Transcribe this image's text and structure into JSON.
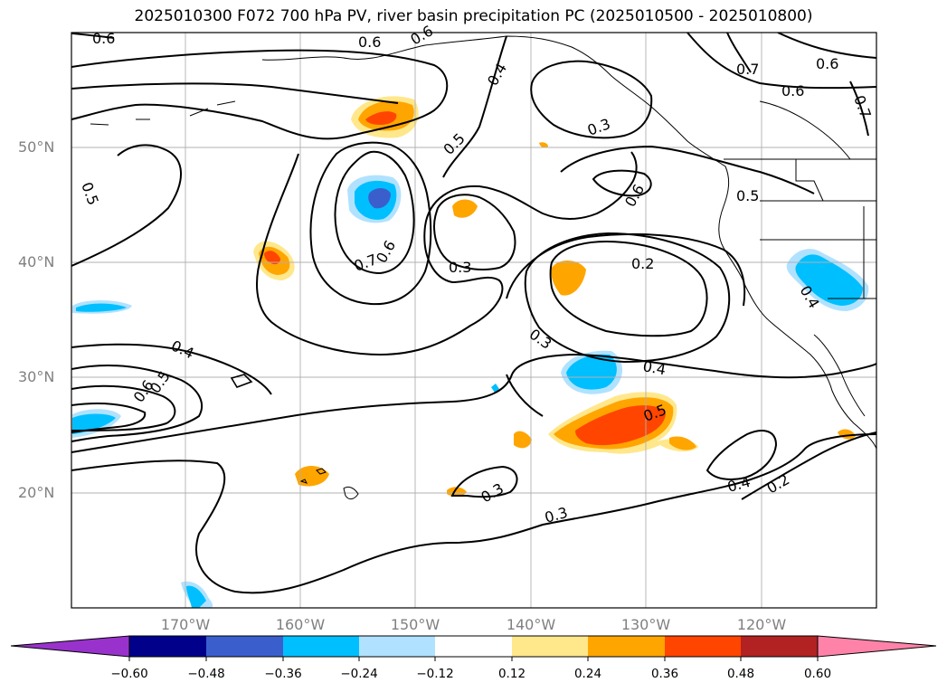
{
  "title": "2025010300 F072 700 hPa PV, river basin precipitation PC (2025010500 - 2025010800)",
  "axes": {
    "lat_labels": [
      "50°N",
      "40°N",
      "30°N",
      "20°N"
    ],
    "lon_labels": [
      "170°W",
      "160°W",
      "150°W",
      "140°W",
      "130°W",
      "120°W"
    ]
  },
  "contour_labels": [
    "0.6",
    "0.6",
    "0.6",
    "0.4",
    "0.3",
    "0.7",
    "0.6",
    "0.7",
    "0.5",
    "0.5",
    "0.6",
    "0.5",
    "0.7",
    "0.6",
    "0.3",
    "0.2",
    "0.4",
    "0.4",
    "0.3",
    "0.4",
    "0.6",
    "0.5",
    "0.5",
    "0.4",
    "0.2",
    "0.3",
    "0.3"
  ],
  "colorbar": {
    "ticks": [
      "−0.60",
      "−0.48",
      "−0.36",
      "−0.24",
      "−0.12",
      "0.12",
      "0.24",
      "0.36",
      "0.48",
      "0.60"
    ],
    "colors": [
      "#9932cc",
      "#00008b",
      "#3a5fcd",
      "#00bfff",
      "#b0e2ff",
      "#ffffff",
      "#ffe78c",
      "#ffa500",
      "#ff4500",
      "#b22222",
      "#ff83a8"
    ]
  }
}
